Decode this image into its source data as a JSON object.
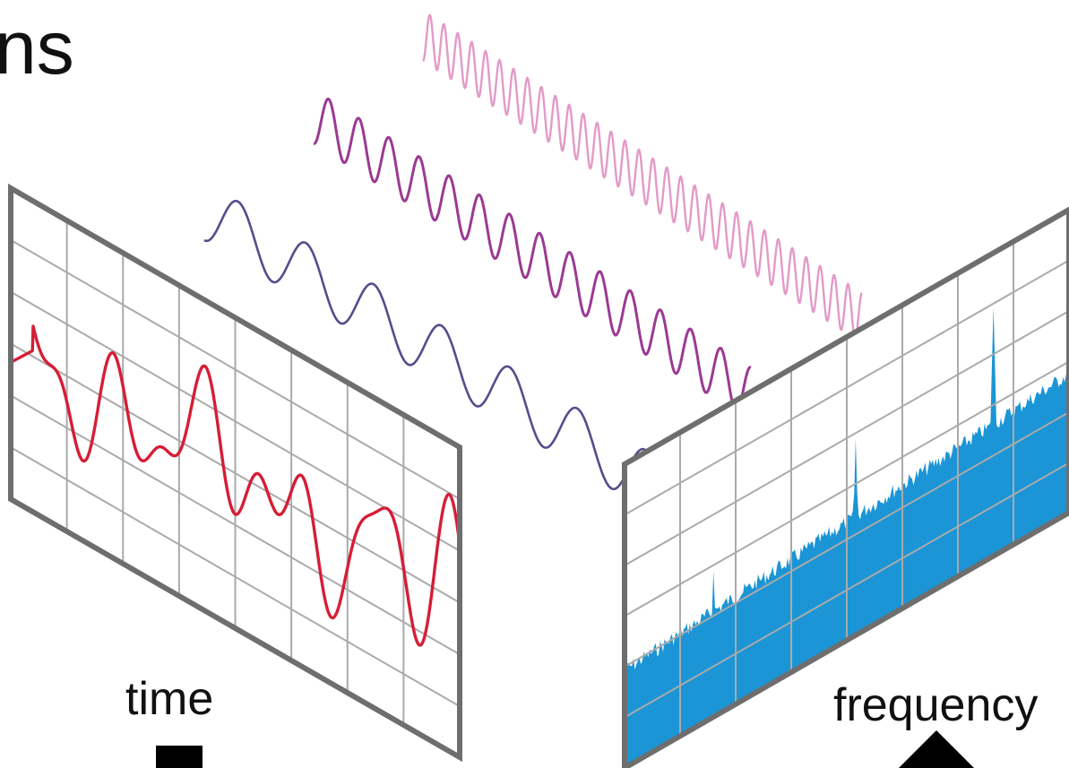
{
  "labels": {
    "title_fragment": "ns",
    "time_axis": "time",
    "frequency_axis": "frequency"
  },
  "colors": {
    "background": "#ffffff",
    "panel_frame": "#6e6e6e",
    "grid": "#aaaaaa",
    "time_signal": "#d51e36",
    "spectrum_fill": "#1b95d6",
    "spectrum_spike": "#35a6e0",
    "wave_low": "#5a4a8c",
    "wave_mid": "#9b3a92",
    "wave_high": "#e39ac7"
  },
  "icons": {
    "time_marker": "square-marker-icon",
    "frequency_marker": "triangle-marker-icon"
  }
}
